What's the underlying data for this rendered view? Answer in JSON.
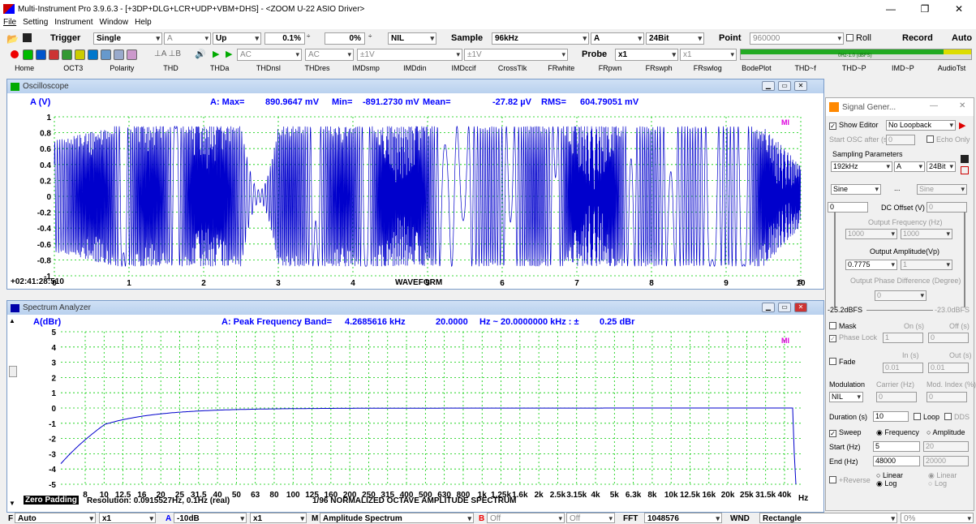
{
  "window": {
    "title": "Multi-Instrument Pro 3.9.6.3  -  [+3DP+DLG+LCR+UDP+VBM+DHS]  -  <ZOOM U-22 ASIO Driver>",
    "min": "—",
    "max": "❐",
    "close": "✕"
  },
  "menu": [
    "File",
    "Setting",
    "Instrument",
    "Window",
    "Help"
  ],
  "toolbar1": {
    "trigger_label": "Trigger",
    "trigger_mode": "Single",
    "trigger_ch": "A",
    "trigger_edge": "Up",
    "trigger_level": "0.1%",
    "trigger_pre": "0%",
    "trigger_nil": "NIL",
    "sample_label": "Sample",
    "sample_rate": "96kHz",
    "sample_ch": "A",
    "bits": "24Bit",
    "point_label": "Point",
    "point_value": "960000",
    "roll_label": "Roll",
    "record_label": "Record",
    "auto_label": "Auto"
  },
  "toolbar2": {
    "coupling1": "AC",
    "coupling2": "AC",
    "range1": "±1V",
    "range2": "±1V",
    "probe_label": "Probe",
    "probe_a": "x1",
    "probe_b": "x1",
    "meter_text": "0Hz-1.0 (dBFS)"
  },
  "tabs": [
    "Home",
    "OCT3",
    "Polarity",
    "THD",
    "THDa",
    "THDnsl",
    "THDres",
    "IMDsmp",
    "IMDdin",
    "IMDccif",
    "CrossTlk",
    "FRwhite",
    "FRpwn",
    "FRswph",
    "FRswlog",
    "BodePlot",
    "THD~f",
    "THD~P",
    "IMD~P",
    "AudioTst"
  ],
  "osc": {
    "title": "Oscilloscope",
    "yunit": "A (V)",
    "max_label": "A: Max=",
    "max_val": "890.9647 mV",
    "min_label": "Min=",
    "min_val": "-891.2730 mV",
    "mean_label": "Mean=",
    "mean_val": "-27.82  µV",
    "rms_label": "RMS=",
    "rms_val": "604.79051 mV",
    "yticks": [
      "1",
      "0.8",
      "0.6",
      "0.4",
      "0.2",
      "0",
      "-0.2",
      "-0.4",
      "-0.6",
      "-0.8",
      "-1"
    ],
    "xticks": [
      "0",
      "1",
      "2",
      "3",
      "4",
      "5",
      "6",
      "7",
      "8",
      "9",
      "10"
    ],
    "xunit": "s",
    "time": "+02:41:28:510",
    "xlabel": "WAVEFORM",
    "logo": "MI"
  },
  "spec": {
    "title": "Spectrum Analyzer",
    "yunit": "A(dBr)",
    "peak_label": "A: Peak Frequency Band=",
    "peak_val": "4.2685616  kHz",
    "range_a": "20.0000",
    "range_b": "Hz ~  20.0000000  kHz : ±",
    "range_c": "0.25 dBr",
    "yticks": [
      "5",
      "4",
      "3",
      "2",
      "1",
      "0",
      "-1",
      "-2",
      "-3",
      "-4",
      "-5"
    ],
    "xticks": [
      "8",
      "10",
      "12.5",
      "16",
      "20",
      "25",
      "31.5",
      "40",
      "50",
      "63",
      "80",
      "100",
      "125",
      "160",
      "200",
      "250",
      "315",
      "400",
      "500",
      "630",
      "800",
      "1k",
      "1.25k",
      "1.6k",
      "2k",
      "2.5k",
      "3.15k",
      "4k",
      "5k",
      "6.3k",
      "8k",
      "10k",
      "12.5k",
      "16k",
      "20k",
      "25k",
      "31.5k",
      "40k"
    ],
    "xunit": "Hz",
    "zero_padding": "Zero Padding",
    "resolution": "Resolution: 0.0915527Hz, 0.1Hz (real)",
    "xlabel": "1/96 NORMALIZED OCTAVE AMPLITUDE SPECTRUM",
    "logo": "MI"
  },
  "siggen": {
    "title": "Signal Gener...",
    "show_editor": "Show Editor",
    "loopback": "No Loopback",
    "start_osc": "Start OSC after (s)",
    "start_osc_val": "0",
    "echo_only": "Echo Only",
    "sampling_params": "Sampling Parameters",
    "rate": "192kHz",
    "ch": "A",
    "bits": "24Bit",
    "wave1": "Sine",
    "wave_btn": "...",
    "wave2": "Sine",
    "dc_val": "0",
    "dc_label": "DC Offset (V)",
    "dc_val2": "0",
    "out_freq": "Output Frequency (Hz)",
    "freq1": "1000",
    "freq2": "1000",
    "out_amp": "Output Amplitude(Vp)",
    "amp1": "0.7775",
    "amp2": "1",
    "phase_label": "Output Phase Difference (Degree)",
    "phase_val": "0",
    "level_left": "-25.2dBFS",
    "level_right": "-23.0dBFS",
    "mask": "Mask",
    "on_s": "On (s)",
    "off_s": "Off (s)",
    "phase_lock": "Phase Lock",
    "pl_val": "1",
    "off_val": "0",
    "fade": "Fade",
    "in_s": "In (s)",
    "out_s": "Out (s)",
    "in_val": "0.01",
    "out_val": "0.01",
    "modulation": "Modulation",
    "carrier": "Carrier (Hz)",
    "mod_index": "Mod. Index (%)",
    "mod_val": "NIL",
    "carrier_val": "0",
    "mod_idx_val": "0",
    "duration": "Duration (s)",
    "duration_val": "10",
    "loop": "Loop",
    "dds": "DDS",
    "sweep": "Sweep",
    "frequency": "Frequency",
    "amplitude": "Amplitude",
    "start_hz": "Start (Hz)",
    "start_val": "5",
    "start_val2": "20",
    "end_hz": "End (Hz)",
    "end_val": "48000",
    "end_val2": "20000",
    "reverse": "+Reverse",
    "linear": "Linear",
    "log": "Log",
    "linear2": "Linear",
    "log2": "Log"
  },
  "bottom": {
    "f": "F",
    "f_val": "Auto",
    "x1": "x1",
    "a": "A",
    "a_val": "-10dB",
    "x2": "x1",
    "m": "M",
    "m_val": "Amplitude Spectrum",
    "b": "B",
    "b_val": "Off",
    "off2": "Off",
    "fft": "FFT",
    "fft_val": "1048576",
    "wnd": "WND",
    "wnd_val": "Rectangle",
    "pct": "0%"
  },
  "colors": {
    "trace": "#0000cc",
    "grid": "#00cc00",
    "label_blue": "#0000ff"
  }
}
